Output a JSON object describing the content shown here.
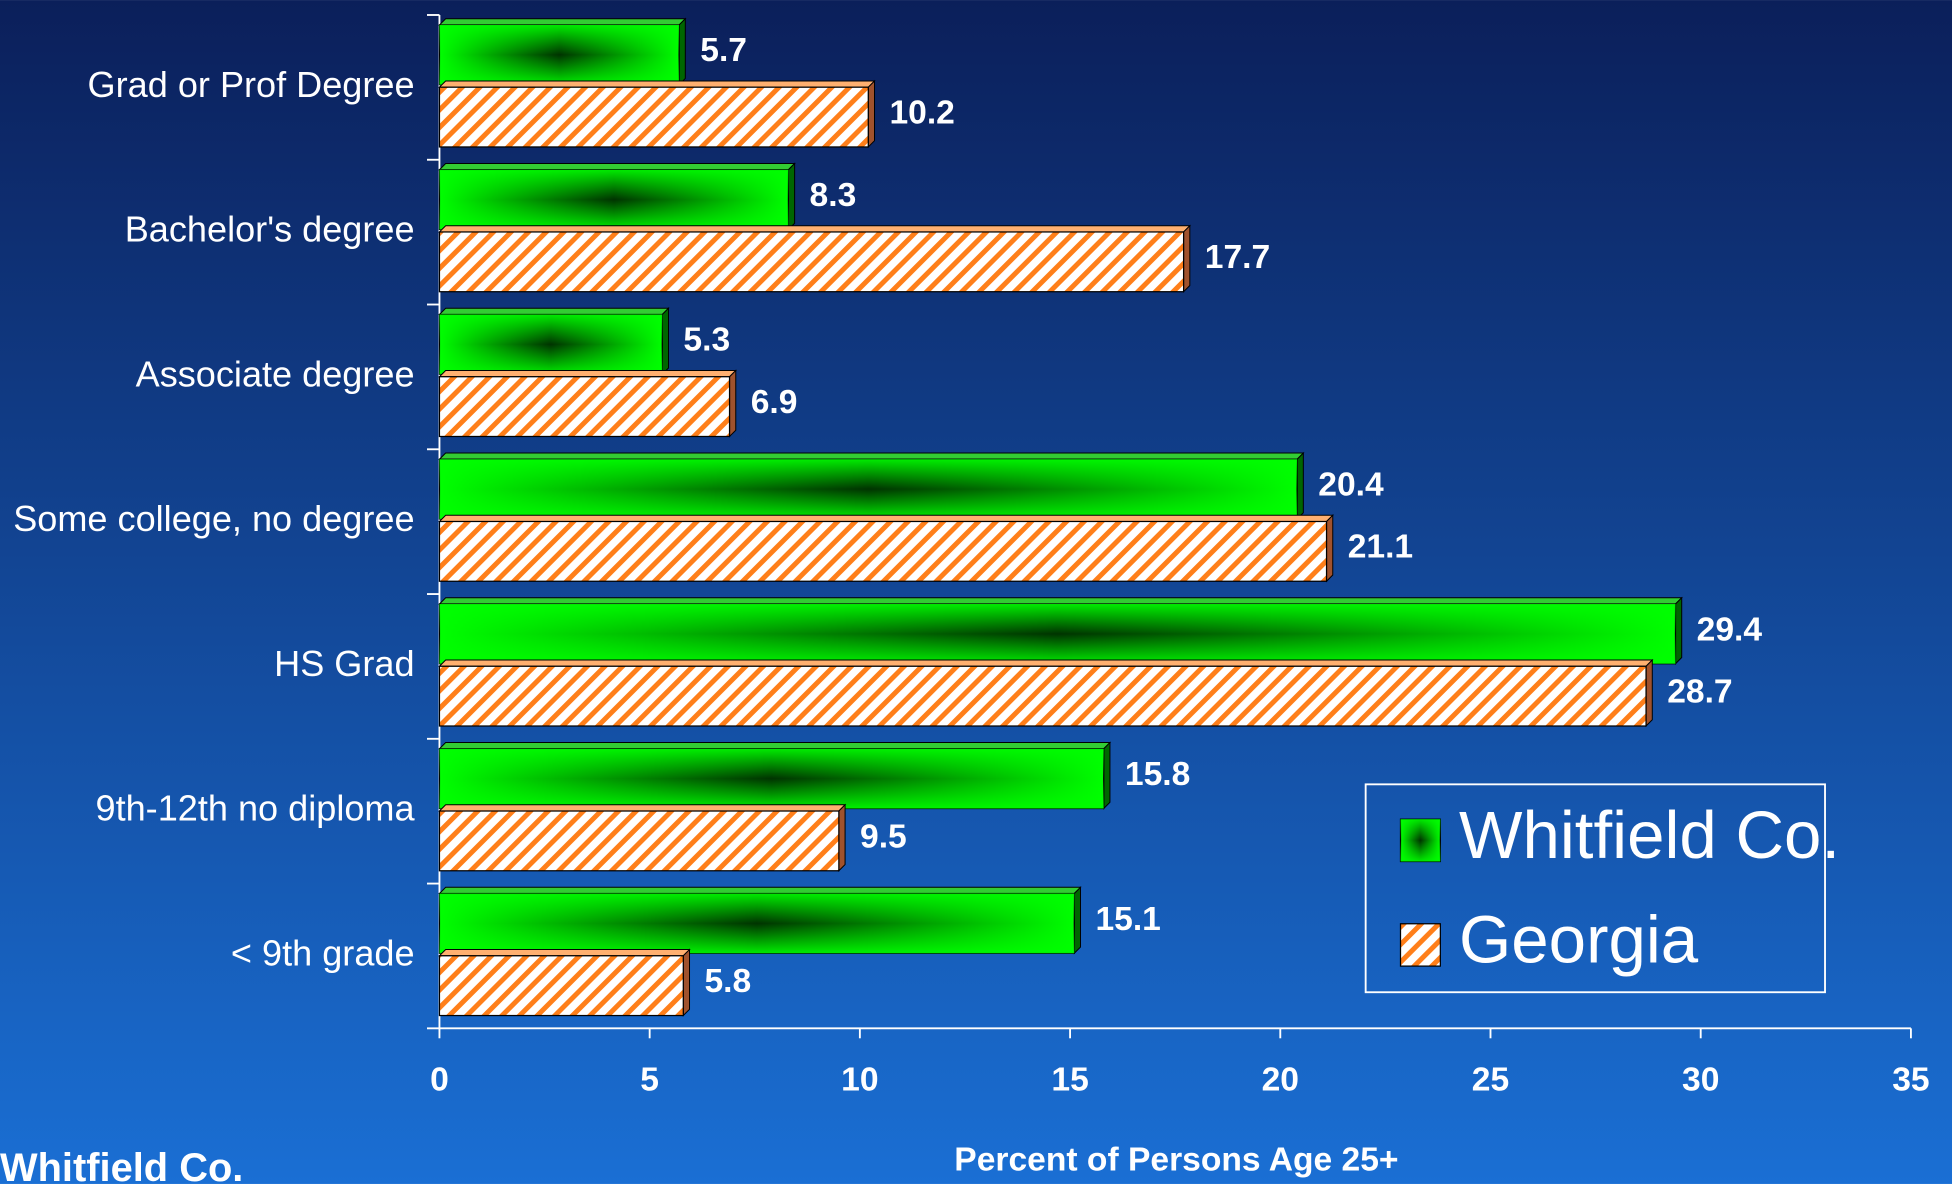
{
  "chart_data": {
    "type": "bar",
    "orientation": "horizontal",
    "categories": [
      "Grad or Prof Degree",
      "Bachelor's degree",
      "Associate degree",
      "Some college, no degree",
      "HS Grad",
      "9th-12th no diploma",
      "< 9th grade"
    ],
    "series": [
      {
        "name": "Whitfield Co.",
        "color": "#00ff00",
        "values": [
          5.7,
          8.3,
          5.3,
          20.4,
          29.4,
          15.8,
          15.1
        ]
      },
      {
        "name": "Georgia",
        "color": "#ff7f1a",
        "values": [
          10.2,
          17.7,
          6.9,
          21.1,
          28.7,
          9.5,
          5.8
        ]
      }
    ],
    "xlim": [
      0,
      35
    ],
    "xticks": [
      0,
      5,
      10,
      15,
      20,
      25,
      30,
      35
    ],
    "xlabel": "Percent of Persons Age 25+",
    "footer": "Whitfield Co.",
    "legend": "lower right"
  }
}
